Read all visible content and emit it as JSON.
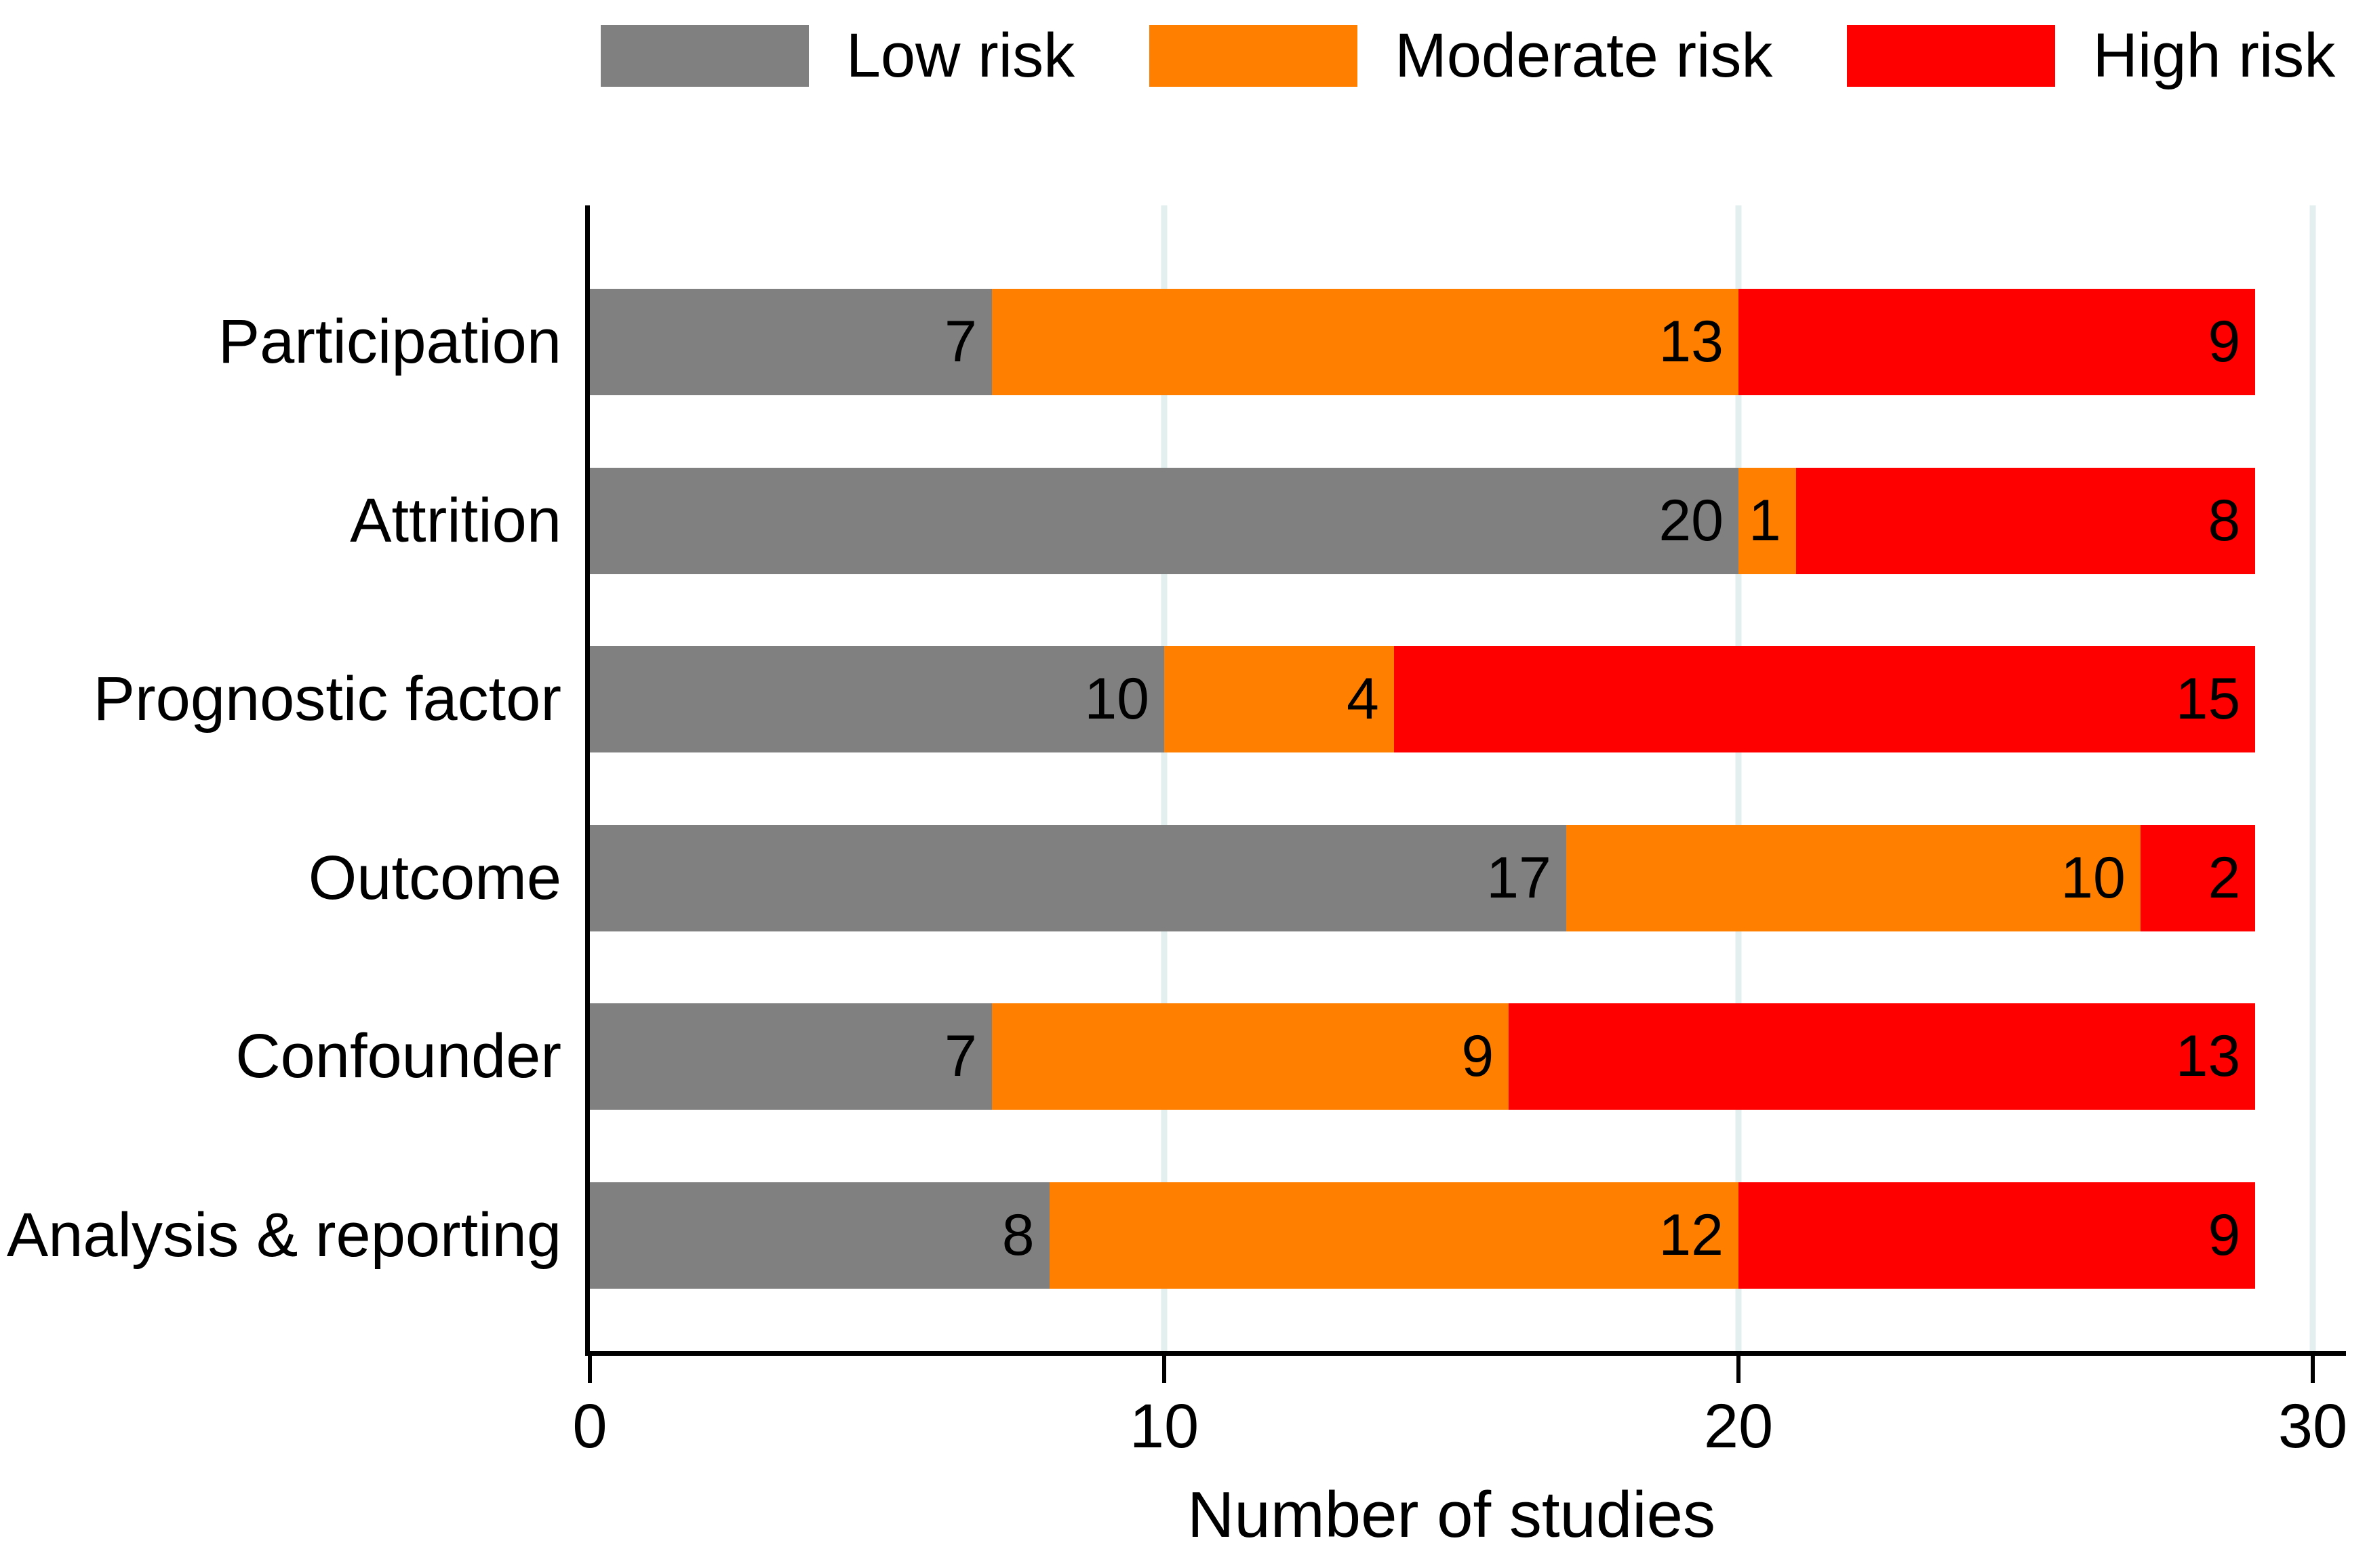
{
  "chart_data": {
    "type": "bar",
    "subtype": "horizontal_stacked",
    "title": "",
    "xlabel": "Number of studies",
    "ylabel": "",
    "categories": [
      "Participation",
      "Attrition",
      "Prognostic factor",
      "Outcome",
      "Confounder",
      "Analysis & reporting"
    ],
    "series": [
      {
        "name": "Low risk",
        "color": "#808080",
        "values": [
          7,
          20,
          10,
          17,
          7,
          8
        ]
      },
      {
        "name": "Moderate risk",
        "color": "#ff8000",
        "values": [
          13,
          1,
          4,
          10,
          9,
          12
        ]
      },
      {
        "name": "High risk",
        "color": "#ff0000",
        "values": [
          9,
          8,
          15,
          2,
          13,
          9
        ]
      }
    ],
    "totals_per_category": [
      29,
      29,
      29,
      29,
      29,
      29
    ],
    "x_ticks": [
      0,
      10,
      20,
      30
    ],
    "xlim": [
      0,
      30.6
    ],
    "grid": true,
    "gridline_color": "#e3efef",
    "axis_color": "#000000",
    "legend_position": "top",
    "bar_value_labels": "inside-right"
  }
}
